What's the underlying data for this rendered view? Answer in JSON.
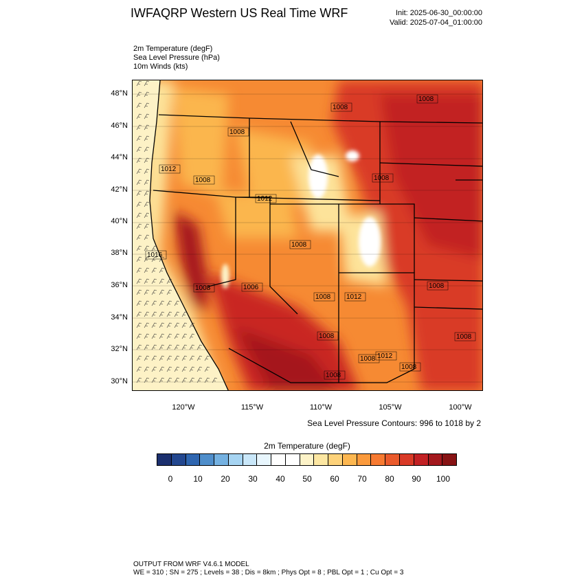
{
  "header": {
    "title": "IWFAQRP Western US Real Time WRF",
    "init": "Init: 2025-06-30_00:00:00",
    "valid": "Valid: 2025-07-04_01:00:00"
  },
  "variables": [
    "2m Temperature   (degF)",
    "Sea Level Pressure   (hPa)",
    "10m Winds   (kts)"
  ],
  "map": {
    "lat_labels": [
      "48°N",
      "46°N",
      "44°N",
      "42°N",
      "40°N",
      "38°N",
      "36°N",
      "34°N",
      "32°N",
      "30°N"
    ],
    "lon_labels": [
      "120°W",
      "115°W",
      "110°W",
      "105°W",
      "100°W"
    ],
    "pressure_labels": [
      "1008",
      "1008",
      "1008",
      "1012",
      "1008",
      "1008",
      "1012",
      "1016",
      "1008",
      "1008",
      "1006",
      "1008",
      "1012",
      "1008",
      "1008",
      "1008",
      "1008",
      "1012",
      "1008",
      "1008"
    ],
    "contour_note": "Sea Level Pressure Contours: 996 to 1018 by 2"
  },
  "colorbar": {
    "title": "2m Temperature  (degF)",
    "tick_labels": [
      "0",
      "10",
      "20",
      "30",
      "40",
      "50",
      "60",
      "70",
      "80",
      "90",
      "100"
    ],
    "colors": [
      "#1b2f6e",
      "#23478f",
      "#2f66b0",
      "#4f8ecb",
      "#74b1e1",
      "#a6d4f2",
      "#c9e7f9",
      "#e8f6fd",
      "#ffffff",
      "#ffffff",
      "#fdf3c8",
      "#fde7a2",
      "#fdd27a",
      "#fdb750",
      "#fb9a3c",
      "#f77a31",
      "#ea5a2c",
      "#d93a27",
      "#c22124",
      "#a3181d",
      "#871314"
    ],
    "palette": {
      "ocean": "#fdf2c6",
      "coast": "#fde39a",
      "mid": "#fbb64e",
      "warm": "#f68a33",
      "hot": "#e55629",
      "very_hot": "#c92823",
      "extreme": "#a5181d",
      "snow": "#ffffff",
      "cool": "#fdeaae"
    }
  },
  "footer": {
    "line1": "OUTPUT FROM WRF V4.6.1 MODEL",
    "line2": "WE = 310 ; SN = 275 ; Levels = 38 ; Dis = 8km ; Phys Opt = 8 ; PBL Opt = 1 ; Cu Opt = 3"
  }
}
